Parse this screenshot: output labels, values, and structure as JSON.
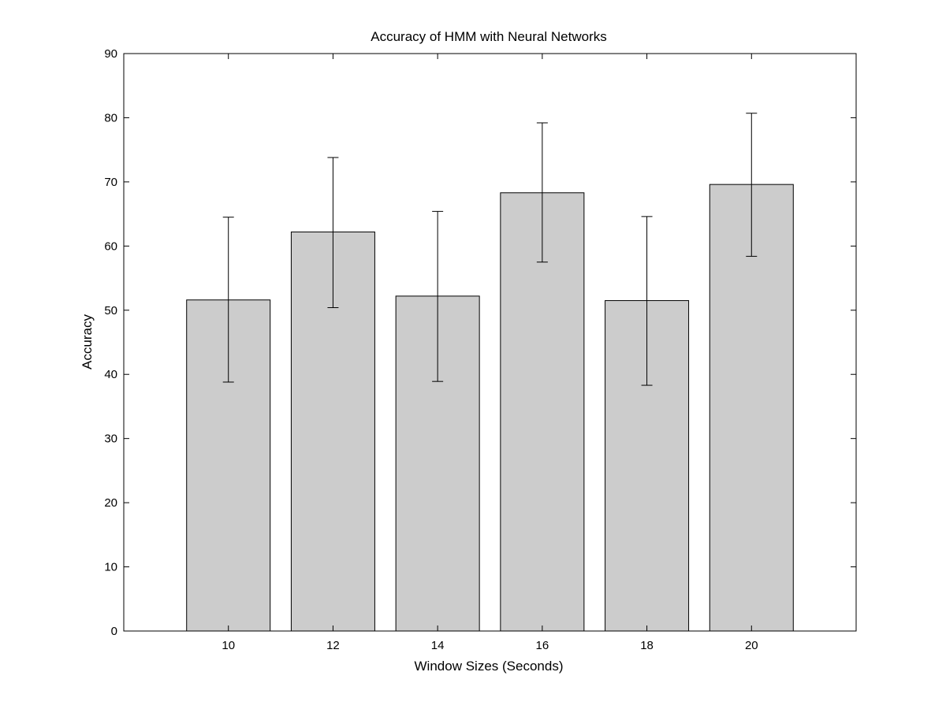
{
  "chart_data": {
    "type": "bar",
    "title": "Accuracy of HMM with Neural Networks",
    "xlabel": "Window Sizes (Seconds)",
    "ylabel": "Accuracy",
    "categories": [
      "10",
      "12",
      "14",
      "16",
      "18",
      "20"
    ],
    "series": [
      {
        "values": [
          51.6,
          62.2,
          52.2,
          68.3,
          51.5,
          69.6
        ],
        "error_low": [
          38.8,
          50.4,
          38.9,
          57.5,
          38.3,
          58.4
        ],
        "error_high": [
          64.5,
          73.8,
          65.4,
          79.2,
          64.6,
          80.7
        ]
      }
    ],
    "x_range": [
      8,
      22
    ],
    "ylim": [
      0,
      90
    ],
    "yticks": [
      0,
      10,
      20,
      30,
      40,
      50,
      60,
      70,
      80,
      90
    ],
    "grid": false,
    "legend": "none",
    "bar_color": "#cccccc",
    "edge_color": "#000000"
  }
}
